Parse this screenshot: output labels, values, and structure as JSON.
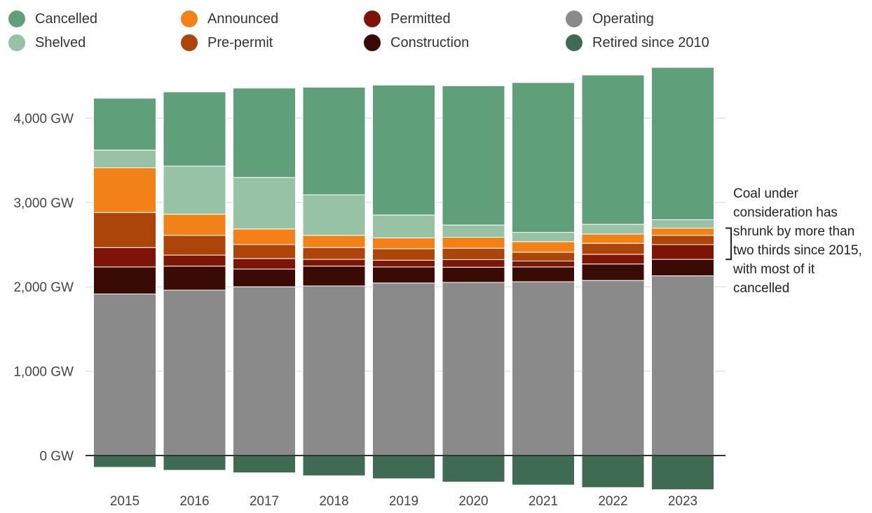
{
  "legend": [
    {
      "label": "Cancelled",
      "color": "#5fa07a"
    },
    {
      "label": "Shelved",
      "color": "#97c2a6"
    },
    {
      "label": "Announced",
      "color": "#f28118"
    },
    {
      "label": "Pre-permit",
      "color": "#ad4409"
    },
    {
      "label": "Permitted",
      "color": "#7d1405"
    },
    {
      "label": "Construction",
      "color": "#3a0a04"
    },
    {
      "label": "Operating",
      "color": "#8a8a8a"
    },
    {
      "label": "Retired since 2010",
      "color": "#3f6b54"
    }
  ],
  "annotation": {
    "text": "Coal under consideration has shrunk by more than two thirds since 2015, with most of it cancelled"
  },
  "chart_data": {
    "type": "bar",
    "stacked": true,
    "categories": [
      "2015",
      "2016",
      "2017",
      "2018",
      "2019",
      "2020",
      "2021",
      "2022",
      "2023"
    ],
    "y_tick_labels": [
      "0 GW",
      "1,000 GW",
      "2,000 GW",
      "3,000 GW",
      "4,000 GW"
    ],
    "y_ticks": [
      0,
      1000,
      2000,
      3000,
      4000
    ],
    "ylim": [
      -450,
      4650
    ],
    "grid": true,
    "legend_position": "top",
    "series": [
      {
        "name": "Operating",
        "color": "#8a8a8a",
        "values": [
          1915,
          1960,
          2000,
          2010,
          2045,
          2052,
          2060,
          2075,
          2130
        ]
      },
      {
        "name": "Construction",
        "color": "#3a0a04",
        "values": [
          320,
          285,
          210,
          235,
          190,
          180,
          175,
          195,
          195
        ]
      },
      {
        "name": "Permitted",
        "color": "#7d1405",
        "values": [
          230,
          130,
          125,
          80,
          80,
          90,
          70,
          115,
          175
        ]
      },
      {
        "name": "Pre-permit",
        "color": "#ad4409",
        "values": [
          415,
          235,
          165,
          140,
          135,
          135,
          105,
          130,
          110
        ]
      },
      {
        "name": "Announced",
        "color": "#f28118",
        "values": [
          530,
          250,
          185,
          145,
          130,
          130,
          125,
          110,
          85
        ]
      },
      {
        "name": "Shelved",
        "color": "#97c2a6",
        "values": [
          210,
          570,
          610,
          480,
          270,
          145,
          110,
          115,
          100
        ]
      },
      {
        "name": "Cancelled",
        "color": "#5fa07a",
        "values": [
          615,
          880,
          1060,
          1275,
          1540,
          1650,
          1775,
          1770,
          1805
        ]
      },
      {
        "name": "Retired since 2010",
        "color": "#3f6b54",
        "values": [
          -140,
          -175,
          -205,
          -240,
          -275,
          -315,
          -350,
          -380,
          -405
        ]
      }
    ]
  }
}
